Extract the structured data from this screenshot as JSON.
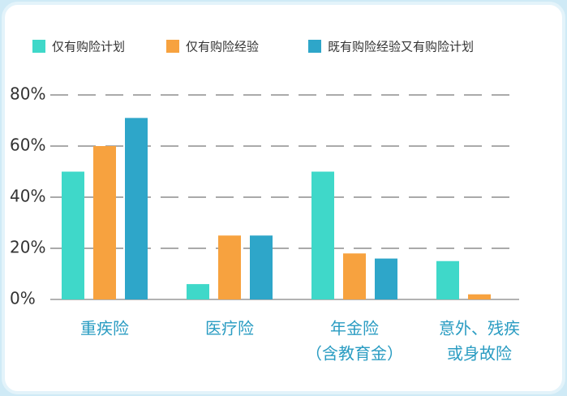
{
  "chart_data": {
    "type": "bar",
    "categories": [
      [
        "重疾险"
      ],
      [
        "医疗险"
      ],
      [
        "年金险",
        "（含教育金）"
      ],
      [
        "意外、残疾",
        "或身故险"
      ]
    ],
    "series": [
      {
        "name": "仅有购险计划",
        "color": "#3fd8c9",
        "values": [
          50,
          6,
          50,
          15
        ]
      },
      {
        "name": "仅有购险经验",
        "color": "#f7a23f",
        "values": [
          60,
          25,
          18,
          2
        ]
      },
      {
        "name": "既有购险经验又有购险计划",
        "color": "#2ea6c9",
        "values": [
          71,
          25,
          16,
          null
        ]
      }
    ],
    "ylim": [
      0,
      80
    ],
    "yticks": [
      {
        "value": 0,
        "label": "0%"
      },
      {
        "value": 20,
        "label": "20%"
      },
      {
        "value": 40,
        "label": "40%"
      },
      {
        "value": 60,
        "label": "60%"
      },
      {
        "value": 80,
        "label": "80%"
      }
    ],
    "grid": true,
    "legend": "top"
  }
}
